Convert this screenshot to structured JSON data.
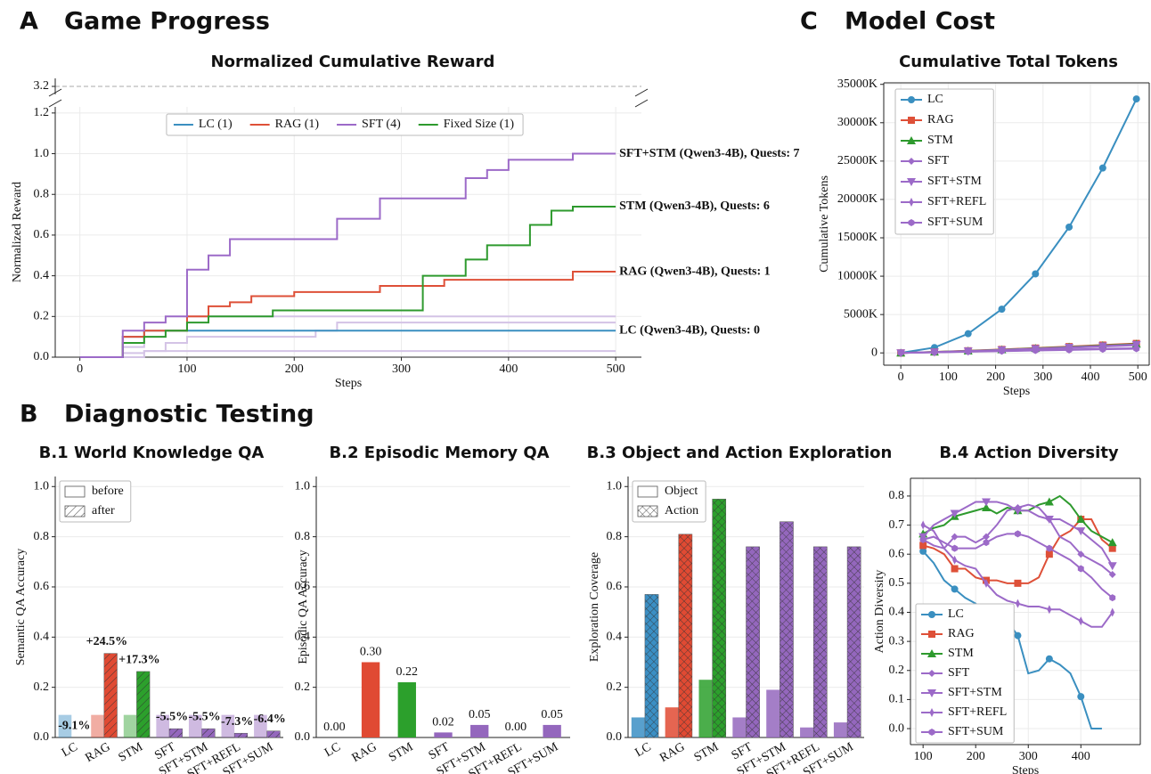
{
  "headings": [
    {
      "letter": "A",
      "text": "Game Progress"
    },
    {
      "letter": "B",
      "text": "Diagnostic Testing"
    },
    {
      "letter": "C",
      "text": "Model Cost"
    }
  ],
  "chart_data": [
    {
      "type": "line",
      "step": true,
      "title": "Normalized Cumulative Reward",
      "xlabel": "Steps",
      "ylabel": "Normalized Reward",
      "x": [
        0,
        20,
        40,
        60,
        80,
        100,
        120,
        140,
        160,
        180,
        200,
        220,
        240,
        260,
        280,
        300,
        320,
        340,
        360,
        380,
        400,
        420,
        440,
        460,
        480,
        500
      ],
      "xlim": [
        -23,
        524
      ],
      "xticks": [
        0,
        100,
        200,
        300,
        400,
        500
      ],
      "ylim": [
        0,
        1.23
      ],
      "yticks": [
        {
          "value": 0,
          "label": "0.0"
        },
        0.2,
        0.4,
        0.6,
        0.8,
        {
          "value": 1,
          "label": "1.0"
        },
        1.2
      ],
      "upper_yticks": [
        3.2
      ],
      "grid": true,
      "legend": {
        "position": "upper center",
        "entries": [
          {
            "label": "LC (1)",
            "color": "#3a8fc0"
          },
          {
            "label": "RAG (1)",
            "color": "#de5038"
          },
          {
            "label": "SFT (4)",
            "color": "#9c6ac8"
          },
          {
            "label": "Fixed Size (1)",
            "color": "#2e9a2e"
          }
        ]
      },
      "series": [
        {
          "color": "#d4c3e6",
          "values": [
            0,
            0,
            0.05,
            0.1,
            0.13,
            0.2,
            0.2,
            0.2,
            0.2,
            0.2,
            0.2,
            0.2,
            0.2,
            0.2,
            0.2,
            0.2,
            0.2,
            0.2,
            0.2,
            0.2,
            0.2,
            0.2,
            0.2,
            0.2,
            0.2,
            0.2
          ]
        },
        {
          "color": "#d4c3e6",
          "values": [
            0,
            0,
            0,
            0.03,
            0.07,
            0.1,
            0.1,
            0.1,
            0.1,
            0.1,
            0.1,
            0.13,
            0.17,
            0.17,
            0.17,
            0.17,
            0.17,
            0.17,
            0.17,
            0.17,
            0.17,
            0.17,
            0.17,
            0.17,
            0.17,
            0.17
          ]
        },
        {
          "color": "#d4c3e6",
          "values": [
            0,
            0,
            0.02,
            0.03,
            0.03,
            0.03,
            0.03,
            0.03,
            0.03,
            0.03,
            0.03,
            0.03,
            0.03,
            0.03,
            0.03,
            0.03,
            0.03,
            0.03,
            0.03,
            0.03,
            0.03,
            0.03,
            0.03,
            0.03,
            0.03,
            0.03
          ]
        },
        {
          "name": "LC (Qwen3-4B), Quests: 0",
          "color": "#3a8fc0",
          "values": [
            0,
            0,
            0.1,
            0.13,
            0.13,
            0.13,
            0.13,
            0.13,
            0.13,
            0.13,
            0.13,
            0.13,
            0.13,
            0.13,
            0.13,
            0.13,
            0.13,
            0.13,
            0.13,
            0.13,
            0.13,
            0.13,
            0.13,
            0.13,
            0.13,
            0.13
          ]
        },
        {
          "name": "RAG (Qwen3-4B), Quests: 1",
          "color": "#de5038",
          "values": [
            0,
            0,
            0.1,
            0.13,
            0.13,
            0.2,
            0.25,
            0.27,
            0.3,
            0.3,
            0.32,
            0.32,
            0.32,
            0.32,
            0.35,
            0.35,
            0.35,
            0.38,
            0.38,
            0.38,
            0.38,
            0.38,
            0.38,
            0.42,
            0.42,
            0.42
          ]
        },
        {
          "name": "STM (Qwen3-4B), Quests: 6",
          "color": "#2e9a2e",
          "values": [
            0,
            0,
            0.07,
            0.1,
            0.13,
            0.17,
            0.2,
            0.2,
            0.2,
            0.23,
            0.23,
            0.23,
            0.23,
            0.23,
            0.23,
            0.23,
            0.4,
            0.4,
            0.48,
            0.55,
            0.55,
            0.65,
            0.72,
            0.74,
            0.74,
            0.74
          ]
        },
        {
          "name": "SFT+STM (Qwen3-4B), Quests: 7",
          "color": "#9c6ac8",
          "values": [
            0,
            0,
            0.13,
            0.17,
            0.2,
            0.43,
            0.5,
            0.58,
            0.58,
            0.58,
            0.58,
            0.58,
            0.68,
            0.68,
            0.78,
            0.78,
            0.78,
            0.78,
            0.88,
            0.92,
            0.97,
            0.97,
            0.97,
            1,
            1,
            1
          ]
        }
      ]
    },
    {
      "type": "line",
      "title": "Cumulative Total Tokens",
      "xlabel": "Steps",
      "ylabel": "Cumulative Tokens",
      "x": [
        0,
        71,
        142,
        213,
        284,
        355,
        426,
        497
      ],
      "xlim": [
        -36,
        524
      ],
      "xticks": [
        0,
        100,
        200,
        300,
        400,
        500
      ],
      "ylim": [
        -1600,
        35200
      ],
      "yticks": [
        0,
        {
          "value": 5000,
          "label": "5000K"
        },
        {
          "value": 10000,
          "label": "10000K"
        },
        {
          "value": 15000,
          "label": "15000K"
        },
        {
          "value": 20000,
          "label": "20000K"
        },
        {
          "value": 25000,
          "label": "25000K"
        },
        {
          "value": 30000,
          "label": "30000K"
        },
        {
          "value": 35000,
          "label": "35000K"
        }
      ],
      "grid": true,
      "legend": "upper left",
      "markevery": 1,
      "series": [
        {
          "name": "LC",
          "color": "#3a8fc0",
          "marker": "o",
          "values": [
            0,
            700,
            2500,
            5700,
            10300,
            16400,
            24100,
            33100
          ]
        },
        {
          "name": "RAG",
          "color": "#de5038",
          "marker": "s",
          "values": [
            0,
            130,
            280,
            450,
            630,
            820,
            1020,
            1230
          ]
        },
        {
          "name": "STM",
          "color": "#2e9a2e",
          "marker": "^",
          "values": [
            0,
            120,
            260,
            420,
            590,
            770,
            960,
            1150
          ]
        },
        {
          "name": "SFT",
          "color": "#9c6ac8",
          "marker": "D",
          "values": [
            0,
            80,
            170,
            260,
            350,
            440,
            530,
            620
          ]
        },
        {
          "name": "SFT+STM",
          "color": "#9c6ac8",
          "marker": "v",
          "values": [
            0,
            110,
            240,
            390,
            550,
            720,
            900,
            1090
          ]
        },
        {
          "name": "SFT+REFL",
          "color": "#9c6ac8",
          "marker": "d",
          "values": [
            0,
            100,
            220,
            360,
            510,
            670,
            840,
            1010
          ]
        },
        {
          "name": "SFT+SUM",
          "color": "#9c6ac8",
          "marker": "h",
          "values": [
            0,
            70,
            150,
            230,
            310,
            390,
            470,
            550
          ]
        }
      ]
    },
    {
      "type": "bar",
      "title": "B.1 World Knowledge QA",
      "ylabel": "Semantic QA Accuracy",
      "categories": [
        "LC",
        "RAG",
        "STM",
        "SFT",
        "SFT+STM",
        "SFT+REFL",
        "SFT+SUM"
      ],
      "colors": [
        "#3b8fc4",
        "#e04a33",
        "#2ca02c",
        "#9467bd",
        "#9467bd",
        "#9467bd",
        "#9467bd"
      ],
      "ylim": [
        0,
        1.04
      ],
      "yticks": [
        {
          "value": 0,
          "label": "0.0"
        },
        0.2,
        0.4,
        0.6,
        0.8,
        {
          "value": 1,
          "label": "1.0"
        }
      ],
      "grid": true,
      "legend": "upper left",
      "series": [
        {
          "name": "before",
          "opacity": 0.45,
          "values": [
            0.09,
            0.09,
            0.09,
            0.09,
            0.09,
            0.09,
            0.09
          ]
        },
        {
          "name": "after",
          "hatch": "//",
          "values": [
            0,
            0.335,
            0.263,
            0.035,
            0.035,
            0.017,
            0.026
          ]
        }
      ],
      "annotations": [
        "-9.1%",
        "+24.5%",
        "+17.3%",
        "-5.5%",
        "-5.5%",
        "-7.3%",
        "-6.4%"
      ]
    },
    {
      "type": "bar",
      "title": "B.2 Episodic Memory QA",
      "ylabel": "Episodic QA Accuracy",
      "categories": [
        "LC",
        "RAG",
        "STM",
        "SFT",
        "SFT+STM",
        "SFT+REFL",
        "SFT+SUM"
      ],
      "colors": [
        "#3b8fc4",
        "#e04a33",
        "#2ca02c",
        "#9467bd",
        "#9467bd",
        "#9467bd",
        "#9467bd"
      ],
      "ylim": [
        0,
        1.04
      ],
      "yticks": [
        {
          "value": 0,
          "label": "0.0"
        },
        0.2,
        0.4,
        0.6,
        0.8,
        {
          "value": 1,
          "label": "1.0"
        }
      ],
      "grid": true,
      "values": [
        0,
        0.3,
        0.22,
        0.02,
        0.05,
        0,
        0.05
      ],
      "value_labels": [
        "0.00",
        "0.30",
        "0.22",
        "0.02",
        "0.05",
        "0.00",
        "0.05"
      ]
    },
    {
      "type": "bar",
      "title": "B.3 Object and Action Exploration",
      "ylabel": "Exploration Coverage",
      "categories": [
        "LC",
        "RAG",
        "STM",
        "SFT",
        "SFT+STM",
        "SFT+REFL",
        "SFT+SUM"
      ],
      "colors": [
        "#3b8fc4",
        "#e04a33",
        "#2ca02c",
        "#9467bd",
        "#9467bd",
        "#9467bd",
        "#9467bd"
      ],
      "ylim": [
        0,
        1.04
      ],
      "yticks": [
        {
          "value": 0,
          "label": "0.0"
        },
        0.2,
        0.4,
        0.6,
        0.8,
        {
          "value": 1,
          "label": "1.0"
        }
      ],
      "grid": true,
      "legend": "upper left",
      "series": [
        {
          "name": "Object",
          "opacity": 0.85,
          "values": [
            0.08,
            0.12,
            0.23,
            0.08,
            0.19,
            0.04,
            0.06
          ]
        },
        {
          "name": "Action",
          "hatch": "xx",
          "values": [
            0.57,
            0.81,
            0.95,
            0.76,
            0.86,
            0.76,
            0.76
          ]
        }
      ]
    },
    {
      "type": "line",
      "title": "B.4 Action Diversity",
      "xlabel": "Steps",
      "ylabel": "Action Diversity",
      "x": [
        100,
        120,
        140,
        160,
        180,
        200,
        220,
        240,
        260,
        280,
        300,
        320,
        340,
        360,
        380,
        400,
        420,
        440,
        460
      ],
      "xlim": [
        76,
        513
      ],
      "xticks": [
        100,
        200,
        300,
        400
      ],
      "ylim": [
        -0.055,
        0.861
      ],
      "yticks": [
        {
          "value": 0,
          "label": "0.0"
        },
        0.1,
        0.2,
        0.3,
        0.4,
        0.5,
        0.6,
        0.7,
        0.8
      ],
      "grid": true,
      "legend": "lower left",
      "markevery": 3,
      "series": [
        {
          "name": "LC",
          "color": "#3a8fc0",
          "marker": "o",
          "values": [
            0.61,
            0.57,
            0.51,
            0.48,
            0.45,
            0.43,
            0.4,
            0.38,
            0.37,
            0.32,
            0.19,
            0.2,
            0.24,
            0.22,
            0.19,
            0.11,
            0,
            0,
            null
          ]
        },
        {
          "name": "RAG",
          "color": "#de5038",
          "marker": "s",
          "values": [
            0.63,
            0.62,
            0.6,
            0.55,
            0.55,
            0.52,
            0.51,
            0.51,
            0.5,
            0.5,
            0.5,
            0.52,
            0.6,
            0.66,
            0.68,
            0.72,
            0.72,
            0.65,
            0.62
          ]
        },
        {
          "name": "STM",
          "color": "#2e9a2e",
          "marker": "^",
          "values": [
            0.67,
            0.69,
            0.7,
            0.73,
            0.74,
            0.75,
            0.76,
            0.74,
            0.76,
            0.75,
            0.75,
            0.77,
            0.78,
            0.8,
            0.77,
            0.72,
            0.68,
            0.66,
            0.64
          ]
        },
        {
          "name": "SFT",
          "color": "#9c6ac8",
          "marker": "D",
          "values": [
            0.65,
            0.63,
            0.62,
            0.66,
            0.66,
            0.64,
            0.66,
            0.7,
            0.75,
            0.76,
            0.77,
            0.76,
            0.72,
            0.66,
            0.64,
            0.6,
            0.58,
            0.56,
            0.53
          ]
        },
        {
          "name": "SFT+STM",
          "color": "#9c6ac8",
          "marker": "v",
          "values": [
            0.66,
            0.7,
            0.72,
            0.74,
            0.76,
            0.78,
            0.78,
            0.78,
            0.77,
            0.75,
            0.75,
            0.73,
            0.72,
            0.72,
            0.7,
            0.68,
            0.65,
            0.62,
            0.56
          ]
        },
        {
          "name": "SFT+REFL",
          "color": "#9c6ac8",
          "marker": "d",
          "values": [
            0.7,
            0.68,
            0.62,
            0.58,
            0.56,
            0.55,
            0.5,
            0.46,
            0.44,
            0.43,
            0.42,
            0.42,
            0.41,
            0.41,
            0.39,
            0.37,
            0.35,
            0.35,
            0.4
          ]
        },
        {
          "name": "SFT+SUM",
          "color": "#9c6ac8",
          "marker": "h",
          "values": [
            0.65,
            0.66,
            0.64,
            0.62,
            0.62,
            0.62,
            0.64,
            0.66,
            0.67,
            0.67,
            0.66,
            0.64,
            0.62,
            0.6,
            0.58,
            0.55,
            0.52,
            0.48,
            0.45
          ]
        }
      ]
    }
  ]
}
